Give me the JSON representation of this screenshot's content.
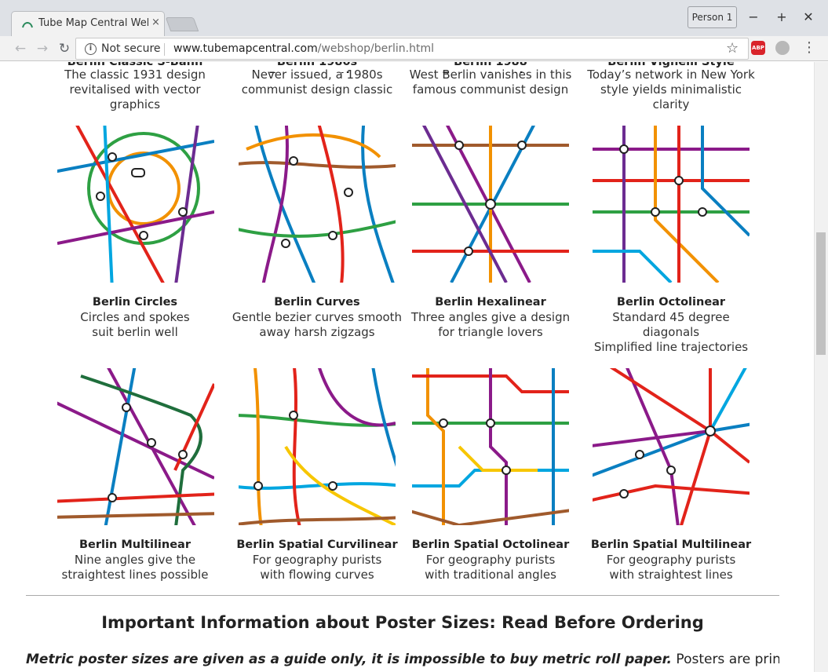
{
  "browser": {
    "tab_title": "Tube Map Central Web",
    "tab_close": "×",
    "person_label": "Person 1",
    "security_label": "Not secure",
    "url_host": "www.tubemapcentral.com",
    "url_path": "/webshop/berlin.html",
    "abp_label": "ABP"
  },
  "top_row": [
    {
      "desc1": "The classic 1931 design",
      "desc2": "revitalised with vector graphics"
    },
    {
      "desc1": "Never issued, a 1980s",
      "desc2": "communist design classic"
    },
    {
      "desc1": "West Berlin vanishes in this",
      "desc2": "famous communist design"
    },
    {
      "desc1": "Today’s network in New York",
      "desc2": "style yields minimalistic clarity"
    }
  ],
  "row1": [
    {
      "name": "Berlin Circles",
      "desc1": "Circles and spokes",
      "desc2": "suit berlin well"
    },
    {
      "name": "Berlin Curves",
      "desc1": "Gentle bezier curves smooth",
      "desc2": "away harsh zigzags"
    },
    {
      "name": "Berlin Hexalinear",
      "desc1": "Three angles give a design",
      "desc2": "for triangle lovers"
    },
    {
      "name": "Berlin Octolinear",
      "desc1": "Standard 45 degree diagonals",
      "desc2": "Simplified line trajectories"
    }
  ],
  "row2": [
    {
      "name": "Berlin Multilinear",
      "desc1": "Nine angles give the",
      "desc2": "straightest lines possible"
    },
    {
      "name": "Berlin Spatial Curvilinear",
      "desc1": "For geography purists",
      "desc2": "with flowing curves"
    },
    {
      "name": "Berlin Spatial Octolinear",
      "desc1": "For geography purists",
      "desc2": "with traditional angles"
    },
    {
      "name": "Berlin Spatial Multilinear",
      "desc1": "For geography purists",
      "desc2": "with straightest lines"
    }
  ],
  "info": {
    "heading": "Important Information about Poster Sizes: Read Before Ordering",
    "text_bold": "Metric poster sizes are given as a guide only, it is impossible to buy metric roll paper.",
    "text_rest": " Posters are printed"
  },
  "line_colors": [
    "#e2231a",
    "#0a7fc1",
    "#8b1a89",
    "#f29100",
    "#2ea043",
    "#a05a2c",
    "#1f6e3c",
    "#00a6e0",
    "#f7c600",
    "#6c2c91"
  ]
}
